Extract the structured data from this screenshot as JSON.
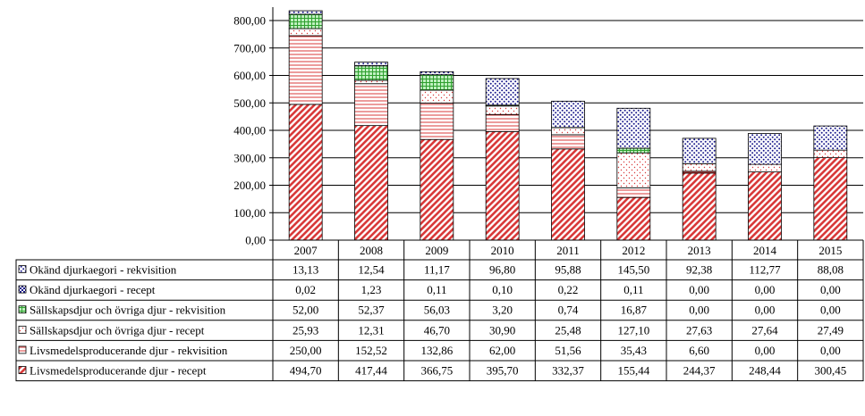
{
  "chart_data": {
    "type": "bar",
    "stacked": true,
    "categories": [
      "2007",
      "2008",
      "2009",
      "2010",
      "2011",
      "2012",
      "2013",
      "2014",
      "2015"
    ],
    "ylim": [
      0,
      800
    ],
    "ytick_labels": [
      "0,00",
      "100,00",
      "200,00",
      "300,00",
      "400,00",
      "500,00",
      "600,00",
      "700,00",
      "800,00"
    ],
    "grid": true,
    "legend": "data-table-left",
    "series": [
      {
        "name": "Livsmedelsproducerande djur - recept",
        "color": "#d93a3a",
        "pattern": "diagonal-hatch",
        "values": [
          494.7,
          417.44,
          366.75,
          395.7,
          332.37,
          155.44,
          244.37,
          248.44,
          300.45
        ],
        "labels": [
          "494,70",
          "417,44",
          "366,75",
          "395,70",
          "332,37",
          "155,44",
          "244,37",
          "248,44",
          "300,45"
        ]
      },
      {
        "name": "Livsmedelsproducerande djur - rekvisition",
        "color": "#d93a3a",
        "pattern": "horizontal-lines",
        "values": [
          250.0,
          152.52,
          132.86,
          62.0,
          51.56,
          35.43,
          6.6,
          0.0,
          0.0
        ],
        "labels": [
          "250,00",
          "152,52",
          "132,86",
          "62,00",
          "51,56",
          "35,43",
          "6,60",
          "0,00",
          "0,00"
        ]
      },
      {
        "name": "Sällskapsdjur och övriga djur - recept",
        "color": "#d93a3a",
        "pattern": "dots",
        "values": [
          25.93,
          12.31,
          46.7,
          30.9,
          25.48,
          127.1,
          27.63,
          27.64,
          27.49
        ],
        "labels": [
          "25,93",
          "12,31",
          "46,70",
          "30,90",
          "25,48",
          "127,10",
          "27,63",
          "27,64",
          "27,49"
        ]
      },
      {
        "name": "Sällskapsdjur och övriga djur - rekvisition",
        "color": "#3aa83a",
        "pattern": "grid",
        "values": [
          52.0,
          52.37,
          56.03,
          3.2,
          0.74,
          16.87,
          0.0,
          0.0,
          0.0
        ],
        "labels": [
          "52,00",
          "52,37",
          "56,03",
          "3,20",
          "0,74",
          "16,87",
          "0,00",
          "0,00",
          "0,00"
        ]
      },
      {
        "name": "Okänd djurkaegori - recept",
        "color": "#1a1a8c",
        "pattern": "checker",
        "values": [
          0.02,
          1.23,
          0.11,
          0.1,
          0.22,
          0.11,
          0.0,
          0.0,
          0.0
        ],
        "labels": [
          "0,02",
          "1,23",
          "0,11",
          "0,10",
          "0,22",
          "0,11",
          "0,00",
          "0,00",
          "0,00"
        ]
      },
      {
        "name": "Okänd djurkaegori - rekvisition",
        "color": "#1a1a8c",
        "pattern": "dots",
        "values": [
          13.13,
          12.54,
          11.17,
          96.8,
          95.88,
          145.5,
          92.38,
          112.77,
          88.08
        ],
        "labels": [
          "13,13",
          "12,54",
          "11,17",
          "96,80",
          "95,88",
          "145,50",
          "92,38",
          "112,77",
          "88,08"
        ]
      }
    ]
  }
}
